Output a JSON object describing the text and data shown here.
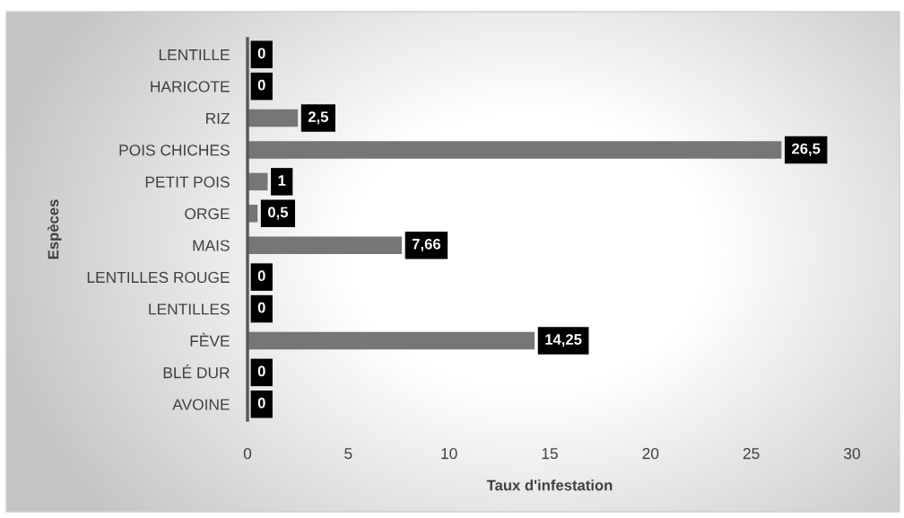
{
  "chart_data": {
    "type": "bar",
    "orientation": "horizontal",
    "categories": [
      "LENTILLE",
      "HARICOTE",
      "RIZ",
      "POIS CHICHES",
      "PETIT POIS",
      "ORGE",
      "MAIS",
      "LENTILLES ROUGE",
      "LENTILLES",
      "FÈVE",
      "BLÉ DUR",
      "AVOINE"
    ],
    "values": [
      0,
      0,
      2.5,
      26.5,
      1,
      0.5,
      7.66,
      0,
      0,
      14.25,
      0,
      0
    ],
    "value_labels": [
      "0",
      "0",
      "2,5",
      "26,5",
      "1",
      "0,5",
      "7,66",
      "0",
      "0",
      "14,25",
      "0",
      "0"
    ],
    "color": "#767676",
    "xlim": [
      0,
      30
    ],
    "xticks": [
      0,
      5,
      10,
      15,
      20,
      25,
      30
    ],
    "xlabel": "Taux d'infestation",
    "ylabel": "Espèces",
    "grid": false
  }
}
